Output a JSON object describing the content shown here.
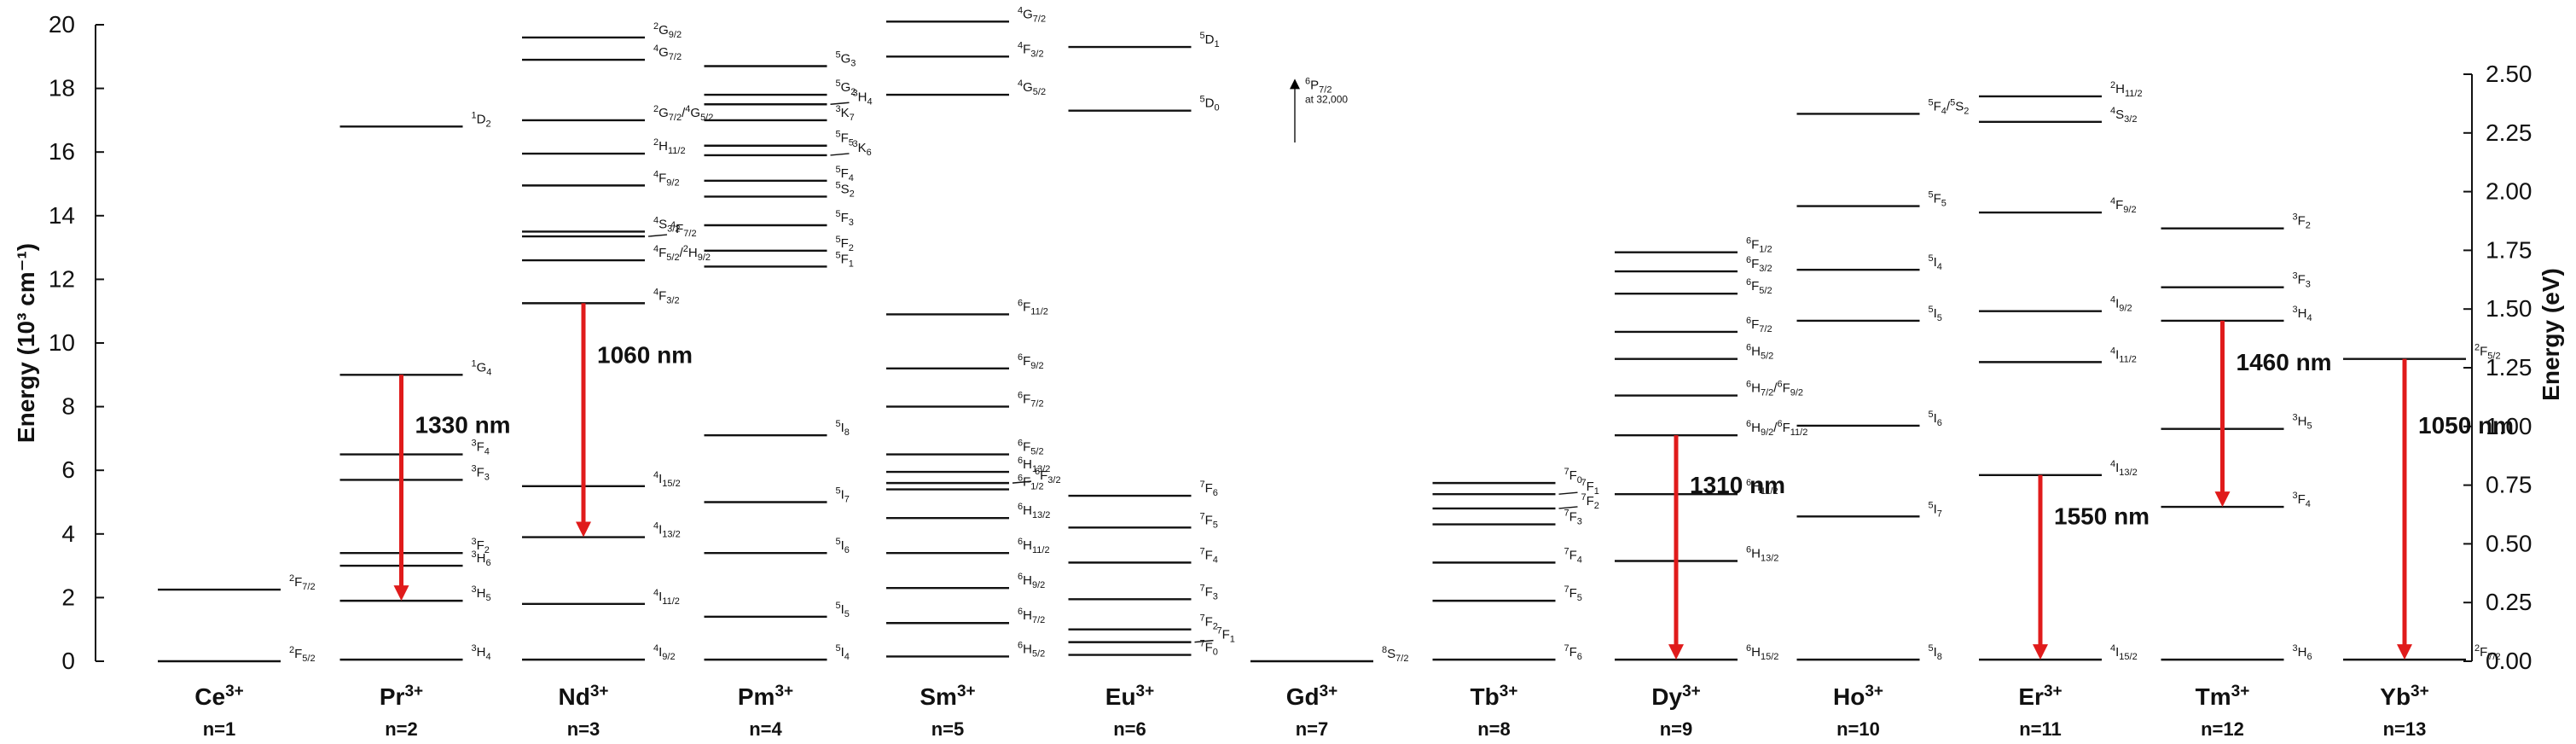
{
  "chart_data": {
    "type": "energy-level-diagram",
    "ylabel": "Energy (10³ cm⁻¹)",
    "ylabel_right": "Energy (eV)",
    "ylim": [
      0,
      20
    ],
    "yticks": [
      0,
      2,
      4,
      6,
      8,
      10,
      12,
      14,
      16,
      18,
      20
    ],
    "ylim_right": [
      0,
      2.5
    ],
    "yticks_right": [
      "0.00",
      "0.25",
      "0.50",
      "0.75",
      "1.00",
      "1.25",
      "1.50",
      "1.75",
      "2.00",
      "2.25",
      "2.50"
    ],
    "ions": [
      {
        "name": "Ce",
        "charge": "3+",
        "n": "n=1",
        "levels": [
          {
            "e": 2.25,
            "l": "2F7/2"
          },
          {
            "e": 0.0,
            "l": "2F5/2"
          }
        ]
      },
      {
        "name": "Pr",
        "charge": "3+",
        "n": "n=2",
        "levels": [
          {
            "e": 16.8,
            "l": "1D2"
          },
          {
            "e": 9.0,
            "l": "1G4"
          },
          {
            "e": 6.5,
            "l": "3F4"
          },
          {
            "e": 5.7,
            "l": "3F3"
          },
          {
            "e": 3.4,
            "l": "3F2"
          },
          {
            "e": 3.0,
            "l": "3H6"
          },
          {
            "e": 1.9,
            "l": "3H5"
          },
          {
            "e": 0.05,
            "l": "3H4"
          }
        ],
        "transitions": [
          {
            "from": 9.0,
            "to": 1.9,
            "label": "1330 nm"
          }
        ]
      },
      {
        "name": "Nd",
        "charge": "3+",
        "n": "n=3",
        "levels": [
          {
            "e": 19.6,
            "l": "2G9/2"
          },
          {
            "e": 18.9,
            "l": "4G7/2"
          },
          {
            "e": 17.0,
            "l": "2G7/2/4G5/2"
          },
          {
            "e": 15.95,
            "l": "2H11/2"
          },
          {
            "e": 14.95,
            "l": "4F9/2"
          },
          {
            "e": 13.5,
            "l": "4S3/2"
          },
          {
            "e": 13.35,
            "l": "4F7/2",
            "pointer": true
          },
          {
            "e": 12.6,
            "l": "4F5/2/2H9/2"
          },
          {
            "e": 11.25,
            "l": "4F3/2"
          },
          {
            "e": 5.5,
            "l": "4I15/2"
          },
          {
            "e": 3.9,
            "l": "4I13/2"
          },
          {
            "e": 1.8,
            "l": "4I11/2"
          },
          {
            "e": 0.05,
            "l": "4I9/2"
          }
        ],
        "transitions": [
          {
            "from": 11.25,
            "to": 3.9,
            "label": "1060 nm"
          }
        ]
      },
      {
        "name": "Pm",
        "charge": "3+",
        "n": "n=4",
        "levels": [
          {
            "e": 18.7,
            "l": "5G3"
          },
          {
            "e": 17.8,
            "l": "5G2"
          },
          {
            "e": 17.5,
            "l": "3H4",
            "pointer": true
          },
          {
            "e": 17.0,
            "l": "3K7"
          },
          {
            "e": 16.2,
            "l": "5F5"
          },
          {
            "e": 15.9,
            "l": "3K6",
            "pointer": true
          },
          {
            "e": 15.1,
            "l": "5F4"
          },
          {
            "e": 14.6,
            "l": "5S2"
          },
          {
            "e": 13.7,
            "l": "5F3"
          },
          {
            "e": 12.9,
            "l": "5F2"
          },
          {
            "e": 12.4,
            "l": "5F1"
          },
          {
            "e": 7.1,
            "l": "5I8"
          },
          {
            "e": 5.0,
            "l": "5I7"
          },
          {
            "e": 3.4,
            "l": "5I6"
          },
          {
            "e": 1.4,
            "l": "5I5"
          },
          {
            "e": 0.05,
            "l": "5I4"
          }
        ]
      },
      {
        "name": "Sm",
        "charge": "3+",
        "n": "n=5",
        "levels": [
          {
            "e": 20.1,
            "l": "4G7/2"
          },
          {
            "e": 19.0,
            "l": "4F3/2"
          },
          {
            "e": 17.8,
            "l": "4G5/2"
          },
          {
            "e": 10.9,
            "l": "6F11/2"
          },
          {
            "e": 9.2,
            "l": "6F9/2"
          },
          {
            "e": 8.0,
            "l": "6F7/2"
          },
          {
            "e": 6.5,
            "l": "6F5/2"
          },
          {
            "e": 5.95,
            "l": "6H13/2"
          },
          {
            "e": 5.6,
            "l": "6F3/2",
            "pointer": true
          },
          {
            "e": 5.4,
            "l": "6F1/2"
          },
          {
            "e": 4.5,
            "l": "6H13/2"
          },
          {
            "e": 3.4,
            "l": "6H11/2"
          },
          {
            "e": 2.3,
            "l": "6H9/2"
          },
          {
            "e": 1.2,
            "l": "6H7/2"
          },
          {
            "e": 0.15,
            "l": "6H5/2"
          }
        ]
      },
      {
        "name": "Eu",
        "charge": "3+",
        "n": "n=6",
        "levels": [
          {
            "e": 19.3,
            "l": "5D1"
          },
          {
            "e": 17.3,
            "l": "5D0"
          },
          {
            "e": 5.2,
            "l": "7F6"
          },
          {
            "e": 4.2,
            "l": "7F5"
          },
          {
            "e": 3.1,
            "l": "7F4"
          },
          {
            "e": 1.95,
            "l": "7F3"
          },
          {
            "e": 1.0,
            "l": "7F2"
          },
          {
            "e": 0.6,
            "l": "7F1",
            "pointer": true
          },
          {
            "e": 0.2,
            "l": "7F0"
          }
        ]
      },
      {
        "name": "Gd",
        "charge": "3+",
        "n": "n=7",
        "levels": [
          {
            "e": 0.0,
            "l": "8S7/2"
          }
        ],
        "note": {
          "label": "6P7/2",
          "sub": "at 32,000"
        }
      },
      {
        "name": "Tb",
        "charge": "3+",
        "n": "n=8",
        "levels": [
          {
            "e": 5.6,
            "l": "7F0"
          },
          {
            "e": 5.25,
            "l": "7F1",
            "pointer": true
          },
          {
            "e": 4.8,
            "l": "7F2",
            "pointer": true
          },
          {
            "e": 4.3,
            "l": "7F3"
          },
          {
            "e": 3.1,
            "l": "7F4"
          },
          {
            "e": 1.9,
            "l": "7F5"
          },
          {
            "e": 0.05,
            "l": "7F6"
          }
        ]
      },
      {
        "name": "Dy",
        "charge": "3+",
        "n": "n=9",
        "levels": [
          {
            "e": 12.85,
            "l": "6F1/2"
          },
          {
            "e": 12.25,
            "l": "6F3/2"
          },
          {
            "e": 11.55,
            "l": "6F5/2"
          },
          {
            "e": 10.35,
            "l": "6F7/2"
          },
          {
            "e": 9.5,
            "l": "6H5/2"
          },
          {
            "e": 8.35,
            "l": "6H7/2/6F9/2"
          },
          {
            "e": 7.1,
            "l": "6H9/2/6F11/2"
          },
          {
            "e": 5.25,
            "l": "6H11/2"
          },
          {
            "e": 3.15,
            "l": "6H13/2"
          },
          {
            "e": 0.05,
            "l": "6H15/2"
          }
        ],
        "transitions": [
          {
            "from": 7.1,
            "to": 0.05,
            "label": "1310 nm"
          }
        ]
      },
      {
        "name": "Ho",
        "charge": "3+",
        "n": "n=10",
        "levels": [
          {
            "e": 17.2,
            "l": "5F4/5S2"
          },
          {
            "e": 14.3,
            "l": "5F5"
          },
          {
            "e": 12.3,
            "l": "5I4"
          },
          {
            "e": 10.7,
            "l": "5I5"
          },
          {
            "e": 7.4,
            "l": "5I6"
          },
          {
            "e": 4.55,
            "l": "5I7"
          },
          {
            "e": 0.05,
            "l": "5I8"
          }
        ]
      },
      {
        "name": "Er",
        "charge": "3+",
        "n": "n=11",
        "levels": [
          {
            "e": 17.75,
            "l": "2H11/2"
          },
          {
            "e": 16.95,
            "l": "4S3/2"
          },
          {
            "e": 14.1,
            "l": "4F9/2"
          },
          {
            "e": 11.0,
            "l": "4I9/2"
          },
          {
            "e": 9.4,
            "l": "4I11/2"
          },
          {
            "e": 5.85,
            "l": "4I13/2"
          },
          {
            "e": 0.05,
            "l": "4I15/2"
          }
        ],
        "transitions": [
          {
            "from": 5.85,
            "to": 0.05,
            "label": "1550 nm"
          }
        ]
      },
      {
        "name": "Tm",
        "charge": "3+",
        "n": "n=12",
        "levels": [
          {
            "e": 13.6,
            "l": "3F2"
          },
          {
            "e": 11.75,
            "l": "3F3"
          },
          {
            "e": 10.7,
            "l": "3H4"
          },
          {
            "e": 7.3,
            "l": "3H5"
          },
          {
            "e": 4.85,
            "l": "3F4"
          },
          {
            "e": 0.05,
            "l": "3H6"
          }
        ],
        "transitions": [
          {
            "from": 10.7,
            "to": 4.85,
            "label": "1460 nm"
          }
        ]
      },
      {
        "name": "Yb",
        "charge": "3+",
        "n": "n=13",
        "levels": [
          {
            "e": 9.5,
            "l": "2F5/2"
          },
          {
            "e": 0.05,
            "l": "2F7/2"
          }
        ],
        "transitions": [
          {
            "from": 9.5,
            "to": 0.05,
            "label": "1050 nm"
          }
        ]
      }
    ],
    "colors": {
      "transition": "#e01b1b",
      "level": "#111111"
    }
  }
}
